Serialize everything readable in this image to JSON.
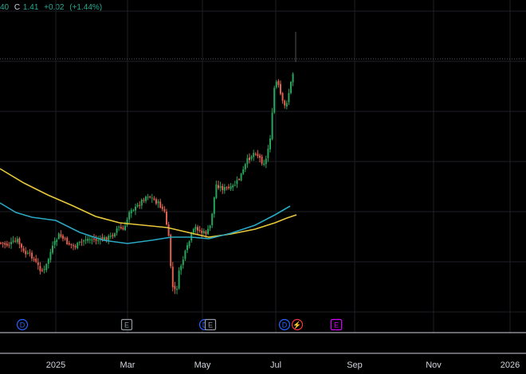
{
  "header": {
    "price_fragment": "40",
    "close_label": "C",
    "close_value": "1.41",
    "change": "+0.02",
    "change_pct": "(+1.44%)",
    "color": "#22ab94"
  },
  "colors": {
    "background": "#000000",
    "grid": "#1c1f26",
    "up": "#26a65b",
    "down": "#e0614f",
    "ma_fast": "#2aa8c4",
    "ma_slow": "#e8c93a",
    "price_line": "#555555",
    "axis_text": "#d1d4dc",
    "dividend": "#2962ff",
    "earnings": "#9598a1",
    "future_earnings": "#d500f9"
  },
  "events": [
    {
      "icon": "dividend-icon",
      "label": "D",
      "color": "#2962ff"
    },
    {
      "icon": "earnings-icon",
      "label": "E",
      "color": "#9598a1"
    },
    {
      "icon": "dividend-icon",
      "label": "D",
      "color": "#2962ff"
    },
    {
      "icon": "earnings-icon",
      "label": "E",
      "color": "#9598a1"
    },
    {
      "icon": "dividend-icon",
      "label": "D",
      "color": "#2962ff"
    },
    {
      "icon": "split-icon",
      "label": "⚡",
      "color": "#f23645"
    },
    {
      "icon": "earnings-icon",
      "label": "E",
      "color": "#d500f9"
    }
  ],
  "chart_data": {
    "type": "candlestick",
    "x_ticks": [
      "2025",
      "Mar",
      "May",
      "Jul",
      "Sep",
      "Nov",
      "2026"
    ],
    "last_close": 1.41,
    "moving_averages": [
      {
        "color": "#2aa8c4"
      },
      {
        "color": "#e8c93a"
      }
    ]
  }
}
